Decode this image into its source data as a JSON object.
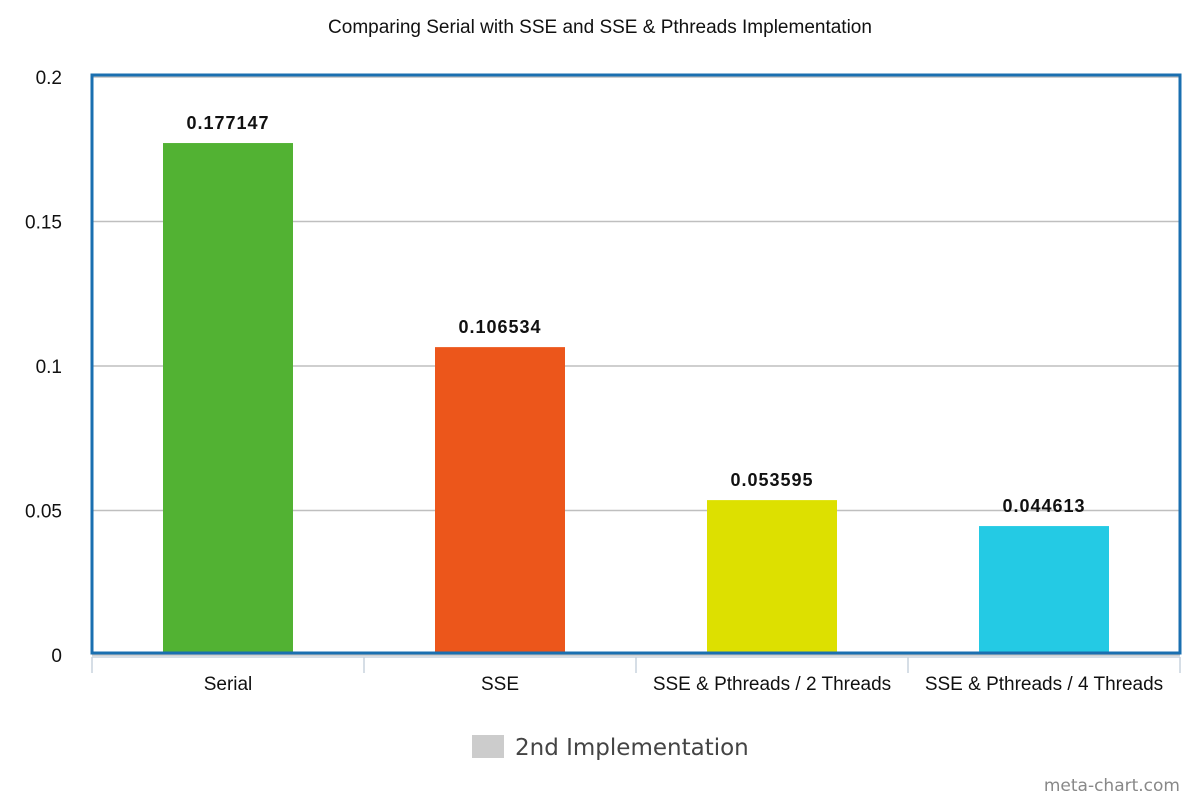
{
  "chart_data": {
    "type": "bar",
    "title": "Comparing Serial with SSE and SSE & Pthreads Implementation",
    "categories": [
      "Serial",
      "SSE",
      "SSE & Pthreads / 2 Threads",
      "SSE & Pthreads / 4 Threads"
    ],
    "series": [
      {
        "name": "2nd Implementation",
        "values": [
          0.177147,
          0.106534,
          0.053595,
          0.044613
        ],
        "value_labels": [
          "0.177147",
          "0.106534",
          "0.053595",
          "0.044613"
        ]
      }
    ],
    "bar_colors": [
      "#52b233",
      "#ec561b",
      "#dde000",
      "#24cae4"
    ],
    "legend_swatch_color": "#cccccc",
    "frame_color": "#1a6fb0",
    "grid": true,
    "ylim": [
      0,
      0.2
    ],
    "yticks": [
      0,
      0.05,
      0.1,
      0.15,
      0.2
    ],
    "ytick_labels": [
      "0",
      "0.05",
      "0.1",
      "0.15",
      "0.2"
    ],
    "legend_position": "bottom-center",
    "xlabel": "",
    "ylabel": ""
  },
  "watermark": "meta-chart.com"
}
